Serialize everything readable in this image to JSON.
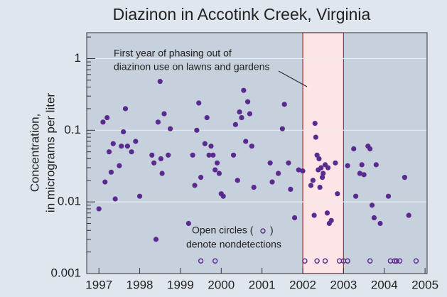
{
  "chart_data": {
    "type": "scatter",
    "title": "Diazinon in Accotink Creek, Virginia",
    "y_label": [
      "Concentration,",
      "in micrograms per liter"
    ],
    "log_y": true,
    "grid": true,
    "color": "#5a2a8e",
    "xlim": [
      1996.7,
      2005.05
    ],
    "ylim": [
      0.001,
      2.3
    ],
    "xticks": [
      1997,
      1998,
      1999,
      2000,
      2001,
      2002,
      2003,
      2004,
      2005
    ],
    "yticks": [
      0.001,
      0.01,
      0.1,
      1
    ],
    "shaded_region": [
      2002,
      2003
    ],
    "annotation": [
      "First year of phasing out of",
      "diazinon use on lawns and gardens"
    ],
    "note": [
      "Open circles (",
      ")",
      "denote nondetections"
    ],
    "x": [
      1997.0,
      1997.1,
      1997.2,
      1997.15,
      1997.25,
      1997.3,
      1997.35,
      1997.4,
      1997.5,
      1997.55,
      1997.6,
      1997.65,
      1997.7,
      1997.8,
      1997.9,
      1998.0,
      1998.3,
      1998.35,
      1998.4,
      1998.45,
      1998.5,
      1998.55,
      1998.6,
      1998.7,
      1998.75,
      1998.52,
      1999.2,
      1999.3,
      1999.35,
      1999.4,
      1999.45,
      1999.5,
      1999.6,
      1999.65,
      1999.7,
      1999.75,
      1999.8,
      1999.85,
      1999.9,
      1999.95,
      2000.0,
      2000.05,
      2000.3,
      2000.35,
      2000.4,
      2000.45,
      2000.5,
      2000.55,
      2000.6,
      2000.65,
      2000.7,
      2000.75,
      2000.8,
      2001.2,
      2001.25,
      2001.4,
      2001.5,
      2001.55,
      2001.65,
      2001.7,
      2001.8,
      2001.9,
      2002.0,
      2002.2,
      2002.25,
      2002.3,
      2002.32,
      2002.35,
      2002.4,
      2002.28,
      2002.45,
      2002.5,
      2002.38,
      2002.55,
      2002.6,
      2002.65,
      2002.7,
      2002.62,
      2002.8,
      2002.85,
      2002.42,
      2002.48,
      2003.1,
      2003.25,
      2003.3,
      2003.4,
      2003.45,
      2003.5,
      2003.6,
      2003.65,
      2003.7,
      2003.75,
      2003.8,
      2003.9,
      2004.1,
      2004.5,
      2004.6
    ],
    "values": [
      0.008,
      0.13,
      0.15,
      0.019,
      0.05,
      0.026,
      0.065,
      0.011,
      0.032,
      0.06,
      0.095,
      0.2,
      0.06,
      0.05,
      0.07,
      0.012,
      0.045,
      0.035,
      0.003,
      0.13,
      0.48,
      0.025,
      0.17,
      0.045,
      0.105,
      0.04,
      0.005,
      0.045,
      0.017,
      0.1,
      0.24,
      0.022,
      0.065,
      0.15,
      0.045,
      0.06,
      0.045,
      0.028,
      0.035,
      0.025,
      0.013,
      0.012,
      0.045,
      0.12,
      0.02,
      0.18,
      0.15,
      0.36,
      0.07,
      0.25,
      0.17,
      0.06,
      0.016,
      0.035,
      0.019,
      0.025,
      0.105,
      0.23,
      0.035,
      0.015,
      0.006,
      0.028,
      0.027,
      0.017,
      0.02,
      0.125,
      0.08,
      0.045,
      0.04,
      0.0065,
      0.03,
      0.025,
      0.028,
      0.033,
      0.007,
      0.005,
      0.0055,
      0.03,
      0.035,
      0.013,
      0.016,
      0.022,
      0.032,
      0.055,
      0.012,
      0.025,
      0.033,
      0.024,
      0.06,
      0.055,
      0.009,
      0.006,
      0.033,
      0.005,
      0.012,
      0.022,
      0.0065
    ],
    "nondetections": {
      "x": [
        1999.5,
        1999.85,
        2002.05,
        2002.35,
        2002.55,
        2002.9,
        2003.0,
        2003.1,
        2003.65,
        2004.15,
        2004.25,
        2004.3,
        2004.38,
        2004.78
      ],
      "values": [
        0.0015,
        0.0015,
        0.0015,
        0.0015,
        0.0015,
        0.0015,
        0.0015,
        0.0015,
        0.0015,
        0.0015,
        0.0015,
        0.0015,
        0.0015,
        0.0015
      ]
    }
  }
}
